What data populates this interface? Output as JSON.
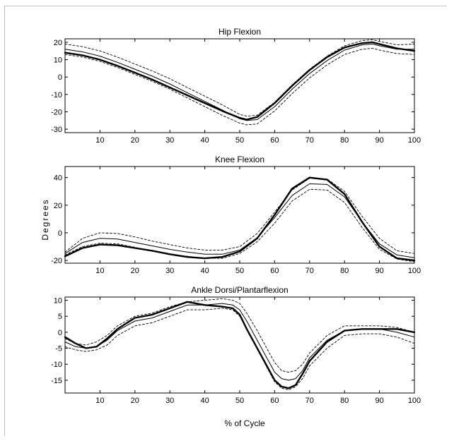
{
  "figure": {
    "ylabel": "Degrees",
    "xlabel": "% of Cycle"
  },
  "chart_data": [
    {
      "type": "line",
      "title": "Hip Flexion",
      "xlim": [
        0,
        100
      ],
      "ylim": [
        -32,
        22
      ],
      "xticks": [
        10,
        20,
        30,
        40,
        50,
        60,
        70,
        80,
        90,
        100
      ],
      "yticks": [
        20,
        10,
        0,
        -10,
        -20,
        -30
      ],
      "x": [
        0,
        5,
        10,
        15,
        20,
        25,
        30,
        35,
        40,
        45,
        50,
        52,
        55,
        60,
        65,
        70,
        75,
        80,
        85,
        88,
        90,
        95,
        100
      ],
      "series": [
        {
          "style": "bold",
          "values": [
            14,
            12.5,
            10,
            6.5,
            2.5,
            -1.5,
            -6,
            -10.5,
            -15,
            -19.5,
            -23.5,
            -24.5,
            -23,
            -15,
            -5,
            4,
            11.5,
            17,
            19.5,
            20,
            19,
            16.5,
            15
          ]
        },
        {
          "style": "mean",
          "values": [
            16,
            14.5,
            12,
            8.5,
            4.5,
            0.5,
            -4,
            -9,
            -14,
            -19,
            -24,
            -25,
            -24.5,
            -17,
            -7,
            2,
            9.5,
            15.5,
            18.5,
            19,
            18,
            16,
            16
          ]
        },
        {
          "style": "dashed",
          "values": [
            19,
            17.5,
            15,
            11.5,
            7.5,
            3.5,
            -1,
            -6,
            -11,
            -16,
            -21.5,
            -22.5,
            -22,
            -14.5,
            -4.5,
            4.5,
            12,
            18,
            21,
            21.5,
            20.5,
            18.5,
            19
          ]
        },
        {
          "style": "dashed",
          "values": [
            13,
            11.5,
            9,
            5.5,
            1.5,
            -2.5,
            -7,
            -12,
            -17,
            -22,
            -26.5,
            -27.5,
            -27,
            -19.5,
            -9.5,
            -0.5,
            7,
            13,
            16,
            16.5,
            15.5,
            13.5,
            13
          ]
        }
      ]
    },
    {
      "type": "line",
      "title": "Knee Flexion",
      "xlim": [
        0,
        100
      ],
      "ylim": [
        -22,
        48
      ],
      "xticks": [
        10,
        20,
        30,
        40,
        50,
        60,
        70,
        80,
        90,
        100
      ],
      "yticks": [
        40,
        20,
        0,
        -20
      ],
      "x": [
        0,
        5,
        10,
        15,
        20,
        25,
        30,
        35,
        40,
        45,
        50,
        55,
        60,
        65,
        70,
        75,
        80,
        85,
        90,
        95,
        100
      ],
      "series": [
        {
          "style": "bold",
          "values": [
            -17,
            -11,
            -8.5,
            -9,
            -11,
            -13,
            -15.5,
            -17.5,
            -18.5,
            -17.5,
            -13.5,
            -4,
            13,
            32,
            40,
            38.5,
            28,
            8,
            -10,
            -18.5,
            -20
          ]
        },
        {
          "style": "mean",
          "values": [
            -15,
            -7,
            -4,
            -4.5,
            -7,
            -9.5,
            -12,
            -14,
            -15.5,
            -15.5,
            -12.5,
            -3.5,
            11,
            27,
            35.5,
            35,
            26,
            8,
            -8,
            -16,
            -18
          ]
        },
        {
          "style": "dashed",
          "values": [
            -14,
            -4,
            0,
            -0.5,
            -3,
            -6,
            -8.5,
            -11,
            -12.5,
            -12.5,
            -10,
            -0.5,
            15,
            31,
            39.5,
            39,
            30,
            12,
            -4,
            -13,
            -15
          ]
        },
        {
          "style": "dashed",
          "values": [
            -16,
            -10,
            -7.5,
            -8,
            -10.5,
            -13,
            -15.5,
            -17,
            -18.5,
            -18.5,
            -15,
            -6.5,
            7,
            23,
            31.5,
            31,
            22,
            4,
            -12,
            -19,
            -21
          ]
        }
      ]
    },
    {
      "type": "line",
      "title": "Ankle Dorsi/Plantarflexion",
      "xlim": [
        0,
        100
      ],
      "ylim": [
        -19,
        11
      ],
      "xticks": [
        10,
        20,
        30,
        40,
        50,
        60,
        70,
        80,
        90,
        100
      ],
      "yticks": [
        10,
        5,
        0,
        -5,
        -10,
        -15
      ],
      "x": [
        0,
        3,
        6,
        9,
        12,
        15,
        20,
        25,
        30,
        35,
        40,
        45,
        48,
        50,
        52,
        55,
        58,
        60,
        62,
        64,
        66,
        68,
        70,
        75,
        80,
        85,
        90,
        95,
        100
      ],
      "series": [
        {
          "style": "bold",
          "values": [
            -1.5,
            -3.5,
            -5,
            -4.5,
            -2,
            1,
            4.5,
            5.5,
            7.5,
            9.5,
            8.5,
            8,
            7.5,
            5.5,
            1,
            -5,
            -11,
            -15,
            -17,
            -17.5,
            -16.5,
            -13,
            -9,
            -3,
            0.5,
            1,
            1,
            1,
            0
          ]
        },
        {
          "style": "mean",
          "values": [
            -3,
            -4.5,
            -5,
            -4.5,
            -2.5,
            0.5,
            3.5,
            4.5,
            6.5,
            8.5,
            8.5,
            9,
            8.5,
            7,
            3.5,
            -2.5,
            -8.5,
            -12.5,
            -14.5,
            -15,
            -14.5,
            -12,
            -8,
            -2.5,
            0.5,
            1,
            1,
            0,
            -1.5
          ]
        },
        {
          "style": "dashed",
          "values": [
            -2,
            -3.5,
            -4,
            -3,
            -1,
            2,
            5,
            6,
            8,
            9.5,
            10,
            10.5,
            10,
            9,
            6,
            0.5,
            -5.5,
            -9.5,
            -12,
            -12.5,
            -12,
            -10,
            -6.5,
            -1,
            2,
            2,
            2,
            1.5,
            0
          ]
        },
        {
          "style": "dashed",
          "values": [
            -4.5,
            -5.5,
            -6,
            -5.5,
            -4,
            -1,
            2,
            3,
            5,
            7,
            7,
            7.5,
            7,
            5,
            1,
            -5,
            -11.5,
            -15.5,
            -17.5,
            -18,
            -17,
            -14.5,
            -10.5,
            -5,
            -1,
            -0.5,
            -0.5,
            -1.5,
            -3.5
          ]
        }
      ]
    }
  ]
}
